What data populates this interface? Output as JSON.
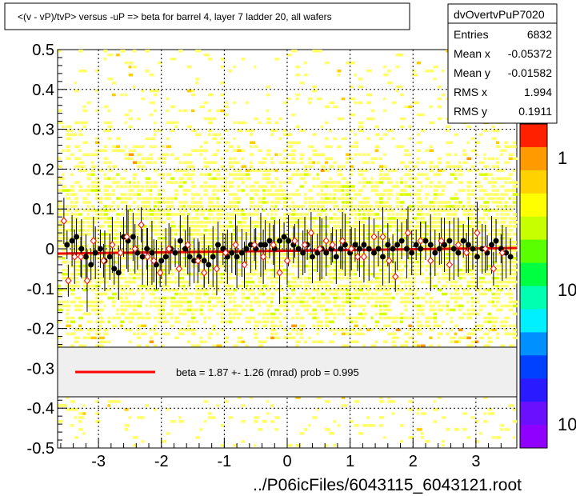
{
  "title": "<(v - vP)/tvP> versus  -uP => beta for barrel 4, layer 7 ladder 20, all wafers",
  "footer": "../P06icFiles/6043115_6043121.root",
  "stats": {
    "name": "dvOvertvPuP7020",
    "rows": [
      {
        "label": "Entries",
        "value": "6832"
      },
      {
        "label": "Mean x",
        "value": "-0.05372"
      },
      {
        "label": "Mean y",
        "value": "-0.01582"
      },
      {
        "label": "RMS x",
        "value": "1.994"
      },
      {
        "label": "RMS y",
        "value": "0.1911"
      }
    ]
  },
  "legend": {
    "text": "beta =    1.87 +-  1.26 (mrad) prob = 0.995",
    "line_color": "#ff0000"
  },
  "colorbar": {
    "labels": [
      "1",
      "10",
      "10"
    ],
    "colors": [
      "#ff2000",
      "#ff9a00",
      "#ffd200",
      "#ffff00",
      "#c8ff00",
      "#5aff00",
      "#00ff40",
      "#00ffb0",
      "#00f0ff",
      "#0090ff",
      "#0040ff",
      "#2a1aff",
      "#6a10ff",
      "#9000ff"
    ]
  },
  "chart_data": {
    "type": "scatter",
    "title": "<(v - vP)/tvP> versus  -uP => beta for barrel 4, layer 7 ladder 20, all wafers",
    "xlim": [
      -3.65,
      3.65
    ],
    "ylim": [
      -0.5,
      0.5
    ],
    "x_ticks": [
      -3,
      -2,
      -1,
      0,
      1,
      2,
      3
    ],
    "y_ticks": [
      -0.5,
      -0.4,
      -0.3,
      -0.2,
      -0.1,
      0,
      0.1,
      0.2,
      0.3,
      0.4,
      0.5
    ],
    "x_tick_labels": [
      "-3",
      "-2",
      "-1",
      "0",
      "1",
      "2",
      "3"
    ],
    "y_tick_labels": [
      "-0.5",
      "-0.4",
      "-0.3",
      "-0.2",
      "-0.1",
      "0",
      "0.1",
      "0.2",
      "0.3",
      "0.4",
      "0.5"
    ],
    "grid": true,
    "fit_line": {
      "x": [
        -3.65,
        3.65
      ],
      "y": [
        -0.012,
        0.002
      ],
      "color": "#ff0000"
    },
    "series": [
      {
        "marker": "filled-circle",
        "color": "#000000",
        "points": [
          [
            -3.5,
            0.01
          ],
          [
            -3.42,
            0.02
          ],
          [
            -3.35,
            0.03
          ],
          [
            -3.27,
            0.0
          ],
          [
            -3.2,
            -0.02
          ],
          [
            -3.12,
            -0.04
          ],
          [
            -3.05,
            -0.01
          ],
          [
            -2.97,
            0.0
          ],
          [
            -2.9,
            -0.03
          ],
          [
            -2.82,
            -0.02
          ],
          [
            -2.75,
            -0.05
          ],
          [
            -2.68,
            -0.06
          ],
          [
            -2.6,
            0.03
          ],
          [
            -2.53,
            0.02
          ],
          [
            -2.45,
            0.03
          ],
          [
            -2.38,
            -0.01
          ],
          [
            -2.3,
            -0.02
          ],
          [
            -2.23,
            0.0
          ],
          [
            -2.15,
            -0.01
          ],
          [
            -2.08,
            -0.04
          ],
          [
            -2.0,
            -0.03
          ],
          [
            -1.93,
            -0.02
          ],
          [
            -1.85,
            0.0
          ],
          [
            -1.78,
            -0.01
          ],
          [
            -1.7,
            0.02
          ],
          [
            -1.62,
            0.0
          ],
          [
            -1.55,
            -0.02
          ],
          [
            -1.48,
            -0.03
          ],
          [
            -1.4,
            -0.02
          ],
          [
            -1.32,
            -0.03
          ],
          [
            -1.25,
            -0.04
          ],
          [
            -1.18,
            -0.02
          ],
          [
            -1.1,
            0.01
          ],
          [
            -1.02,
            0.0
          ],
          [
            -0.95,
            -0.02
          ],
          [
            -0.88,
            -0.01
          ],
          [
            -0.8,
            -0.02
          ],
          [
            -0.72,
            -0.01
          ],
          [
            -0.65,
            0.0
          ],
          [
            -0.58,
            0.01
          ],
          [
            -0.5,
            0.0
          ],
          [
            -0.42,
            0.01
          ],
          [
            -0.35,
            0.01
          ],
          [
            -0.28,
            0.02
          ],
          [
            -0.2,
            0.0
          ],
          [
            -0.12,
            0.02
          ],
          [
            -0.05,
            0.03
          ],
          [
            0.02,
            0.02
          ],
          [
            0.1,
            0.01
          ],
          [
            0.18,
            0.0
          ],
          [
            0.25,
            -0.01
          ],
          [
            0.32,
            0.01
          ],
          [
            0.4,
            -0.02
          ],
          [
            0.48,
            -0.01
          ],
          [
            0.55,
            0.0
          ],
          [
            0.62,
            -0.01
          ],
          [
            0.7,
            0.0
          ],
          [
            0.78,
            -0.02
          ],
          [
            0.85,
            0.0
          ],
          [
            0.92,
            0.01
          ],
          [
            1.0,
            -0.01
          ],
          [
            1.08,
            0.01
          ],
          [
            1.15,
            0.0
          ],
          [
            1.22,
            0.01
          ],
          [
            1.3,
            0.0
          ],
          [
            1.38,
            -0.01
          ],
          [
            1.45,
            0.0
          ],
          [
            1.52,
            -0.02
          ],
          [
            1.6,
            0.01
          ],
          [
            1.68,
            0.0
          ],
          [
            1.75,
            0.01
          ],
          [
            1.82,
            0.02
          ],
          [
            1.9,
            0.0
          ],
          [
            1.98,
            -0.01
          ],
          [
            2.05,
            0.01
          ],
          [
            2.12,
            0.0
          ],
          [
            2.2,
            0.02
          ],
          [
            2.28,
            0.01
          ],
          [
            2.35,
            -0.01
          ],
          [
            2.42,
            0.0
          ],
          [
            2.5,
            0.01
          ],
          [
            2.58,
            0.02
          ],
          [
            2.65,
            0.0
          ],
          [
            2.72,
            -0.01
          ],
          [
            2.8,
            0.02
          ],
          [
            2.88,
            0.01
          ],
          [
            2.95,
            0.0
          ],
          [
            3.02,
            -0.02
          ],
          [
            3.1,
            0.0
          ],
          [
            3.18,
            -0.01
          ],
          [
            3.25,
            0.01
          ],
          [
            3.32,
            0.02
          ],
          [
            3.4,
            0.0
          ],
          [
            3.48,
            -0.01
          ],
          [
            3.55,
            -0.02
          ]
        ]
      },
      {
        "marker": "open-diamond",
        "color": "#ff0000",
        "points": [
          [
            -3.55,
            0.07
          ],
          [
            -3.48,
            -0.08
          ],
          [
            -3.38,
            -0.02
          ],
          [
            -3.28,
            -0.02
          ],
          [
            -3.18,
            -0.08
          ],
          [
            -3.08,
            0.02
          ],
          [
            -2.92,
            -0.03
          ],
          [
            -2.78,
            0.01
          ],
          [
            -2.65,
            -0.01
          ],
          [
            -2.55,
            0.03
          ],
          [
            -2.42,
            0.0
          ],
          [
            -2.32,
            0.06
          ],
          [
            -2.22,
            -0.02
          ],
          [
            -2.12,
            -0.03
          ],
          [
            -2.02,
            -0.06
          ],
          [
            -1.88,
            0.0
          ],
          [
            -1.72,
            -0.05
          ],
          [
            -1.58,
            0.01
          ],
          [
            -1.42,
            -0.03
          ],
          [
            -1.32,
            -0.06
          ],
          [
            -1.12,
            -0.05
          ],
          [
            -0.98,
            -0.01
          ],
          [
            -0.82,
            0.01
          ],
          [
            -0.68,
            -0.04
          ],
          [
            -0.52,
            0.01
          ],
          [
            -0.38,
            -0.02
          ],
          [
            -0.22,
            0.01
          ],
          [
            -0.12,
            -0.06
          ],
          [
            0.0,
            -0.03
          ],
          [
            0.12,
            0.02
          ],
          [
            0.28,
            0.01
          ],
          [
            0.38,
            0.04
          ],
          [
            0.52,
            0.0
          ],
          [
            0.62,
            0.02
          ],
          [
            0.72,
            0.01
          ],
          [
            0.88,
            0.02
          ],
          [
            1.02,
            0.0
          ],
          [
            1.12,
            -0.02
          ],
          [
            1.22,
            -0.02
          ],
          [
            1.38,
            0.03
          ],
          [
            1.52,
            0.03
          ],
          [
            1.62,
            -0.03
          ],
          [
            1.72,
            -0.07
          ],
          [
            1.92,
            0.04
          ],
          [
            2.12,
            0.02
          ],
          [
            2.28,
            -0.03
          ],
          [
            2.45,
            0.02
          ],
          [
            2.58,
            -0.04
          ],
          [
            2.72,
            0.01
          ],
          [
            2.85,
            -0.01
          ],
          [
            3.02,
            0.04
          ],
          [
            3.15,
            0.0
          ],
          [
            3.28,
            -0.05
          ],
          [
            3.42,
            -0.01
          ]
        ]
      }
    ]
  }
}
